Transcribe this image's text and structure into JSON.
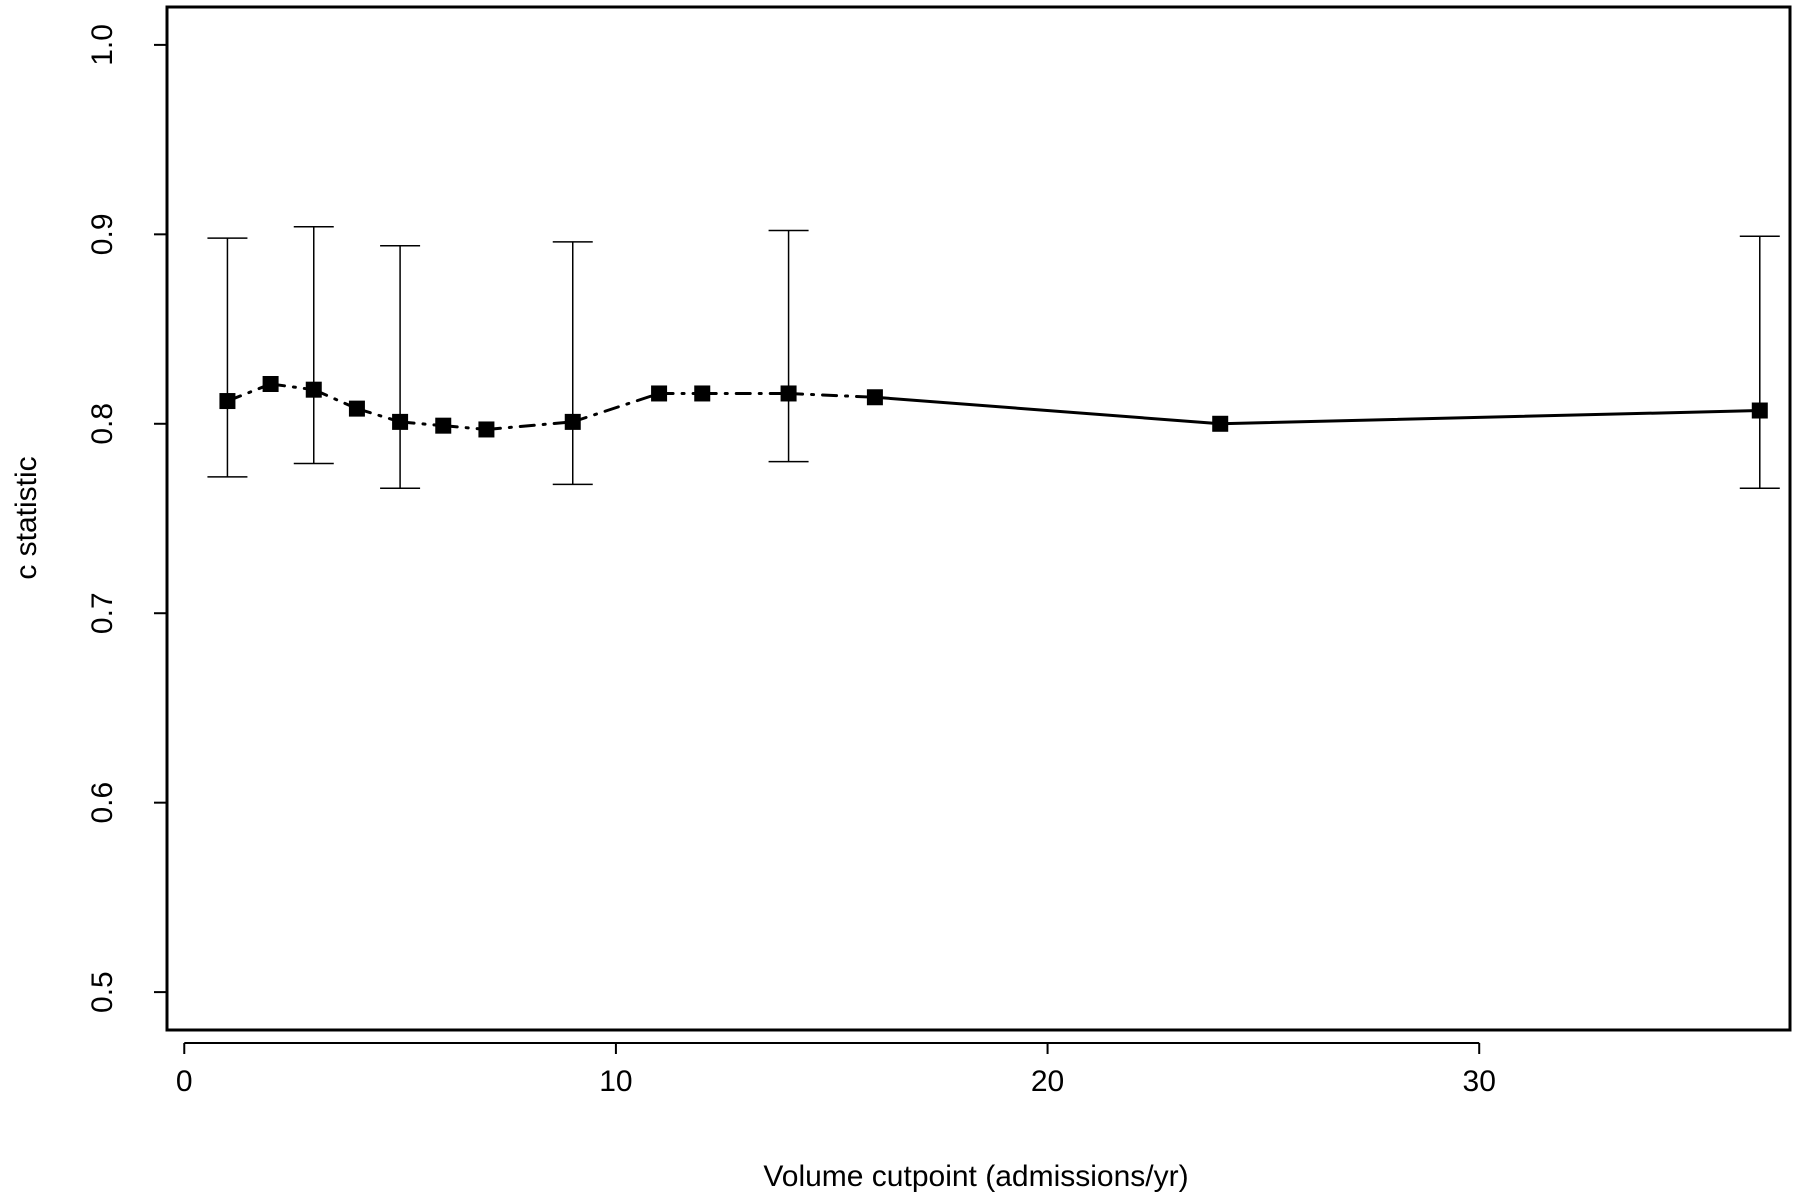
{
  "chart_data": {
    "type": "line",
    "title": "",
    "xlabel": "Volume cutpoint (admissions/yr)",
    "ylabel": "c statistic",
    "xlim": [
      -0.4,
      37.2
    ],
    "ylim": [
      0.48,
      1.02
    ],
    "xticks": [
      0,
      10,
      20,
      30
    ],
    "yticks": [
      0.5,
      0.6,
      0.7,
      0.8,
      0.9,
      1.0
    ],
    "xtick_labels": [
      "0",
      "10",
      "20",
      "30"
    ],
    "ytick_labels": [
      "0.5",
      "0.6",
      "0.7",
      "0.8",
      "0.9",
      "1.0"
    ],
    "grid": false,
    "legend": "none",
    "marker": "filled-square",
    "color": "#000000",
    "series": [
      {
        "x": [
          1,
          2,
          3,
          4,
          5,
          6,
          7,
          9,
          11,
          12,
          14,
          16,
          24,
          36.5
        ],
        "values": [
          0.812,
          0.821,
          0.818,
          0.808,
          0.801,
          0.799,
          0.797,
          0.801,
          0.816,
          0.816,
          0.816,
          0.814,
          0.8,
          0.807
        ]
      }
    ],
    "error_bars": [
      {
        "x": 1,
        "lower": 0.772,
        "upper": 0.898
      },
      {
        "x": 3,
        "lower": 0.779,
        "upper": 0.904
      },
      {
        "x": 5,
        "lower": 0.766,
        "upper": 0.894
      },
      {
        "x": 9,
        "lower": 0.768,
        "upper": 0.896
      },
      {
        "x": 14,
        "lower": 0.78,
        "upper": 0.902
      },
      {
        "x": 36.5,
        "lower": 0.766,
        "upper": 0.899
      }
    ]
  }
}
